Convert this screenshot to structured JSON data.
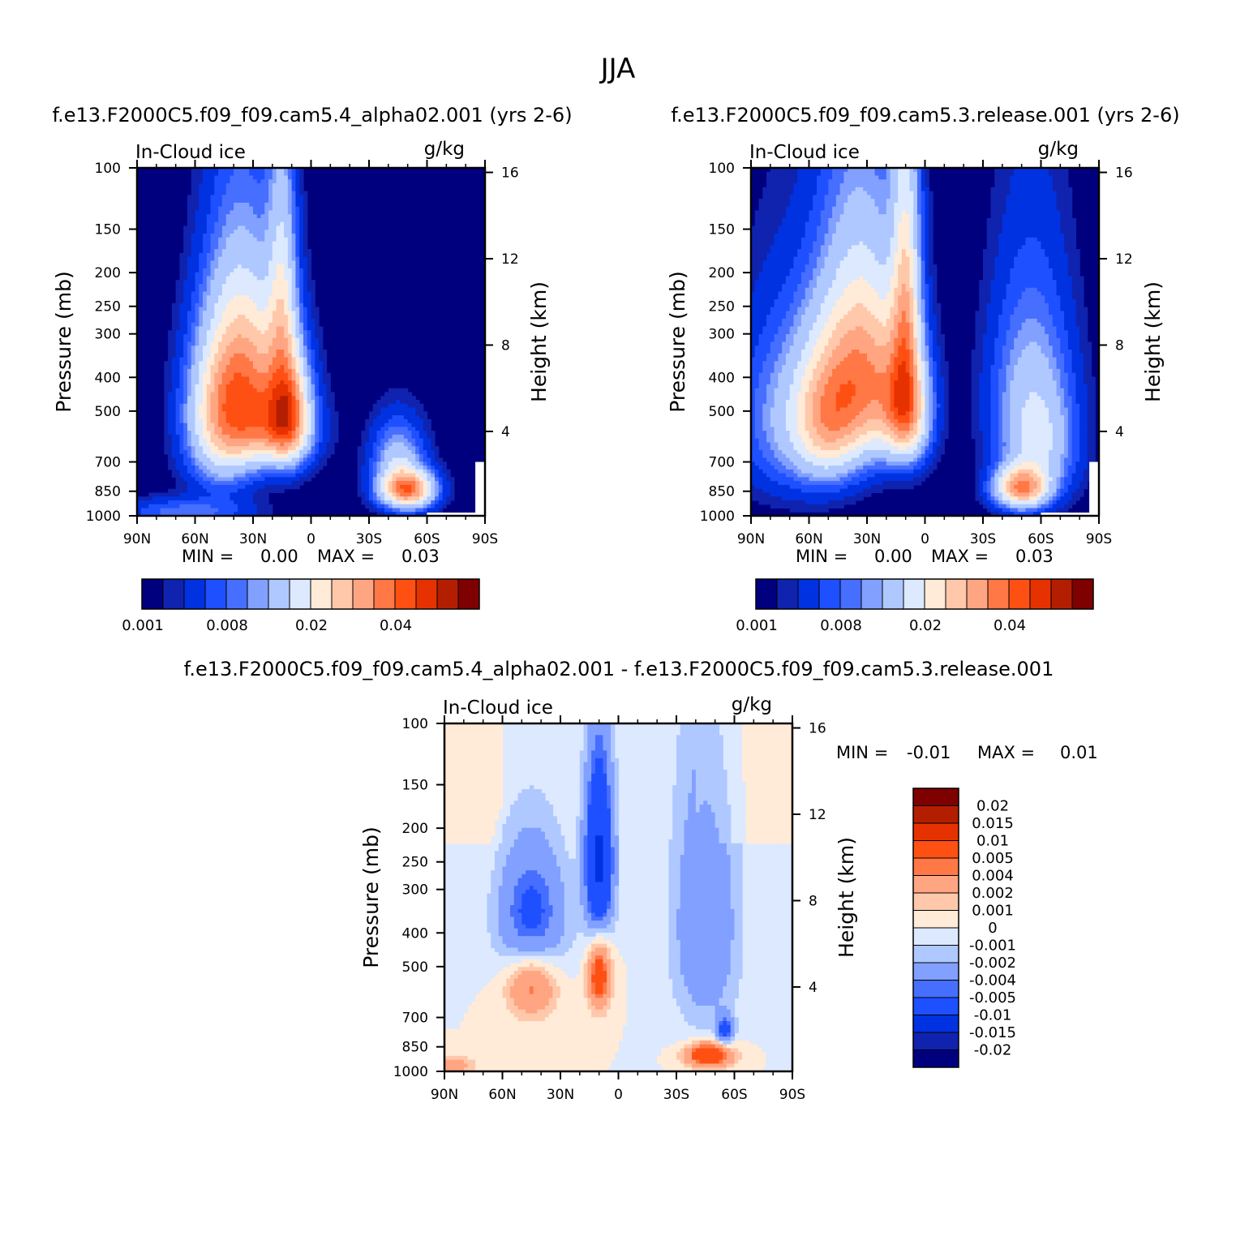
{
  "page": {
    "title": "JJA"
  },
  "palettes": {
    "abs": [
      "#00007f",
      "#0f23af",
      "#0032e1",
      "#1e50ff",
      "#466eff",
      "#82a0ff",
      "#afc8ff",
      "#dce9ff",
      "#ffebd7",
      "#ffc8aa",
      "#ffa582",
      "#ff7846",
      "#ff5014",
      "#e63200",
      "#b41e00",
      "#7f0000"
    ],
    "diff": [
      "#00007f",
      "#0f23af",
      "#0032e1",
      "#1e50ff",
      "#466eff",
      "#82a0ff",
      "#afc8ff",
      "#dce9ff",
      "#ffebd7",
      "#ffc8aa",
      "#ffa582",
      "#ff7846",
      "#ff5014",
      "#e63200",
      "#b41e00",
      "#7f0000"
    ]
  },
  "chart_data": [
    {
      "type": "heatmap",
      "title": "f.e13.F2000C5.f09_f09.cam5.4_alpha02.001 (yrs 2-6)",
      "subtitle_left": "In-Cloud ice",
      "subtitle_right": "g/kg",
      "xlabel": "",
      "ylabel": "Pressure (mb)",
      "y2label": "Height (km)",
      "x_ticks": [
        "90N",
        "60N",
        "30N",
        "0",
        "30S",
        "60S",
        "90S"
      ],
      "y_ticks": [
        "100",
        "150",
        "200",
        "250",
        "300",
        "400",
        "500",
        "700",
        "850",
        "1000"
      ],
      "y2_ticks": [
        "16",
        "12",
        "8",
        "4"
      ],
      "min_text": "MIN =",
      "min_value": "0.00",
      "max_text": "MAX =",
      "max_value": "0.03",
      "colorbar_labels": [
        "0.001",
        "0.008",
        "0.02",
        "0.04"
      ],
      "blobs": [
        {
          "lat": 65,
          "p": 975,
          "sx": 22,
          "sy": 60,
          "a": 0.25
        },
        {
          "lat": 46,
          "p": 520,
          "sx": 12,
          "sy": 170,
          "a": 0.9
        },
        {
          "lat": 35,
          "p": 300,
          "sx": 12,
          "sy": 140,
          "a": 0.45
        },
        {
          "lat": 28,
          "p": 460,
          "sx": 14,
          "sy": 140,
          "a": 0.7
        },
        {
          "lat": 15,
          "p": 240,
          "sx": 5,
          "sy": 130,
          "a": 0.55
        },
        {
          "lat": 12,
          "p": 500,
          "sx": 7,
          "sy": 120,
          "a": 1.05
        },
        {
          "lat": 20,
          "p": 570,
          "sx": 14,
          "sy": 90,
          "a": 0.5
        },
        {
          "lat": -50,
          "p": 840,
          "sx": 9,
          "sy": 70,
          "a": 1.25
        },
        {
          "lat": -45,
          "p": 700,
          "sx": 9,
          "sy": 120,
          "a": 0.45
        }
      ],
      "peak": 0.03
    },
    {
      "type": "heatmap",
      "title": "f.e13.F2000C5.f09_f09.cam5.3.release.001 (yrs 2-6)",
      "subtitle_left": "In-Cloud ice",
      "subtitle_right": "g/kg",
      "xlabel": "",
      "ylabel": "Pressure (mb)",
      "y2label": "Height (km)",
      "x_ticks": [
        "90N",
        "60N",
        "30N",
        "0",
        "30S",
        "60S",
        "90S"
      ],
      "y_ticks": [
        "100",
        "150",
        "200",
        "250",
        "300",
        "400",
        "500",
        "700",
        "850",
        "1000"
      ],
      "y2_ticks": [
        "16",
        "12",
        "8",
        "4"
      ],
      "min_text": "MIN =",
      "min_value": "0.00",
      "max_text": "MAX =",
      "max_value": "0.03",
      "colorbar_labels": [
        "0.001",
        "0.008",
        "0.02",
        "0.04"
      ],
      "blobs": [
        {
          "lat": 70,
          "p": 520,
          "sx": 18,
          "sy": 200,
          "a": 0.35
        },
        {
          "lat": 50,
          "p": 520,
          "sx": 12,
          "sy": 160,
          "a": 0.85
        },
        {
          "lat": 33,
          "p": 300,
          "sx": 14,
          "sy": 160,
          "a": 0.55
        },
        {
          "lat": 28,
          "p": 450,
          "sx": 14,
          "sy": 150,
          "a": 0.7
        },
        {
          "lat": 10,
          "p": 260,
          "sx": 5,
          "sy": 160,
          "a": 0.8
        },
        {
          "lat": 10,
          "p": 500,
          "sx": 8,
          "sy": 120,
          "a": 1.0
        },
        {
          "lat": -50,
          "p": 830,
          "sx": 9,
          "sy": 75,
          "a": 1.15
        },
        {
          "lat": -55,
          "p": 450,
          "sx": 14,
          "sy": 200,
          "a": 0.4
        },
        {
          "lat": -60,
          "p": 650,
          "sx": 12,
          "sy": 150,
          "a": 0.35
        }
      ],
      "peak": 0.03
    },
    {
      "type": "heatmap",
      "title": "f.e13.F2000C5.f09_f09.cam5.4_alpha02.001 - f.e13.F2000C5.f09_f09.cam5.3.release.001",
      "subtitle_left": "In-Cloud ice",
      "subtitle_right": "g/kg",
      "xlabel": "",
      "ylabel": "Pressure (mb)",
      "y2label": "Height (km)",
      "x_ticks": [
        "90N",
        "60N",
        "30N",
        "0",
        "30S",
        "60S",
        "90S"
      ],
      "y_ticks": [
        "100",
        "150",
        "200",
        "250",
        "300",
        "400",
        "500",
        "700",
        "850",
        "1000"
      ],
      "y2_ticks": [
        "16",
        "12",
        "8",
        "4"
      ],
      "min_text": "MIN =",
      "min_value": "-0.01",
      "max_text": "MAX =",
      "max_value": "0.01",
      "colorbar_labels": [
        "0.02",
        "0.015",
        "0.01",
        "0.005",
        "0.004",
        "0.002",
        "0.001",
        "0",
        "-0.001",
        "-0.002",
        "-0.004",
        "-0.005",
        "-0.01",
        "-0.015",
        "-0.02"
      ],
      "blobs": [
        {
          "lat": 45,
          "p": 360,
          "sx": 12,
          "sy": 110,
          "a": -0.006
        },
        {
          "lat": 10,
          "p": 250,
          "sx": 5,
          "sy": 100,
          "a": -0.011
        },
        {
          "lat": -45,
          "p": 380,
          "sx": 12,
          "sy": 230,
          "a": -0.004
        },
        {
          "lat": -55,
          "p": 760,
          "sx": 3,
          "sy": 50,
          "a": -0.006
        },
        {
          "lat": 45,
          "p": 560,
          "sx": 9,
          "sy": 90,
          "a": 0.005
        },
        {
          "lat": 10,
          "p": 530,
          "sx": 4,
          "sy": 90,
          "a": 0.007
        },
        {
          "lat": -47,
          "p": 900,
          "sx": 8,
          "sy": 50,
          "a": 0.009
        },
        {
          "lat": 85,
          "p": 960,
          "sx": 8,
          "sy": 40,
          "a": 0.003
        }
      ],
      "peak": 0.01
    }
  ]
}
